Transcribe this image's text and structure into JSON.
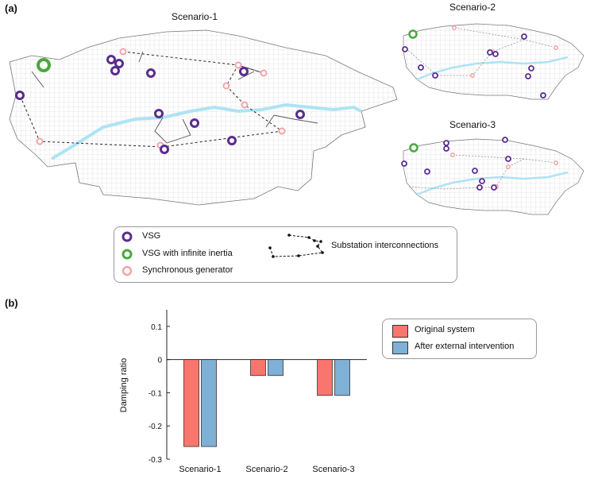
{
  "panel_labels": {
    "a": "(a)",
    "b": "(b)"
  },
  "maps": {
    "titles": [
      "Scenario-1",
      "Scenario-2",
      "Scenario-3"
    ]
  },
  "map_legend": {
    "vsg": "VSG",
    "vsg_infinite": "VSG with infinite inertia",
    "sync_gen": "Synchronous generator",
    "interconnections": "Substation interconnections"
  },
  "colors": {
    "vsg": "#5b2d8e",
    "vsg_infinite": "#4aa83f",
    "sync_gen": "#f4a3a8",
    "river": "#aee3f4",
    "original": "#f8766d",
    "after": "#7fb0d6"
  },
  "chart_data": {
    "type": "bar",
    "categories": [
      "Scenario-1",
      "Scenario-2",
      "Scenario-3"
    ],
    "series": [
      {
        "name": "Original system",
        "values": [
          -0.262,
          -0.048,
          -0.108
        ]
      },
      {
        "name": "After external intervention",
        "values": [
          -0.262,
          -0.048,
          -0.108
        ]
      }
    ],
    "ylabel": "Damping ratio",
    "ylim": [
      -0.3,
      0.15
    ],
    "yticks": [
      0.1,
      0,
      -0.1,
      -0.2,
      -0.3
    ],
    "ytick_labels": [
      "0.1",
      "0",
      "-0.1",
      "-0.2",
      "-0.3"
    ],
    "legend_position": "right",
    "grid": false
  }
}
